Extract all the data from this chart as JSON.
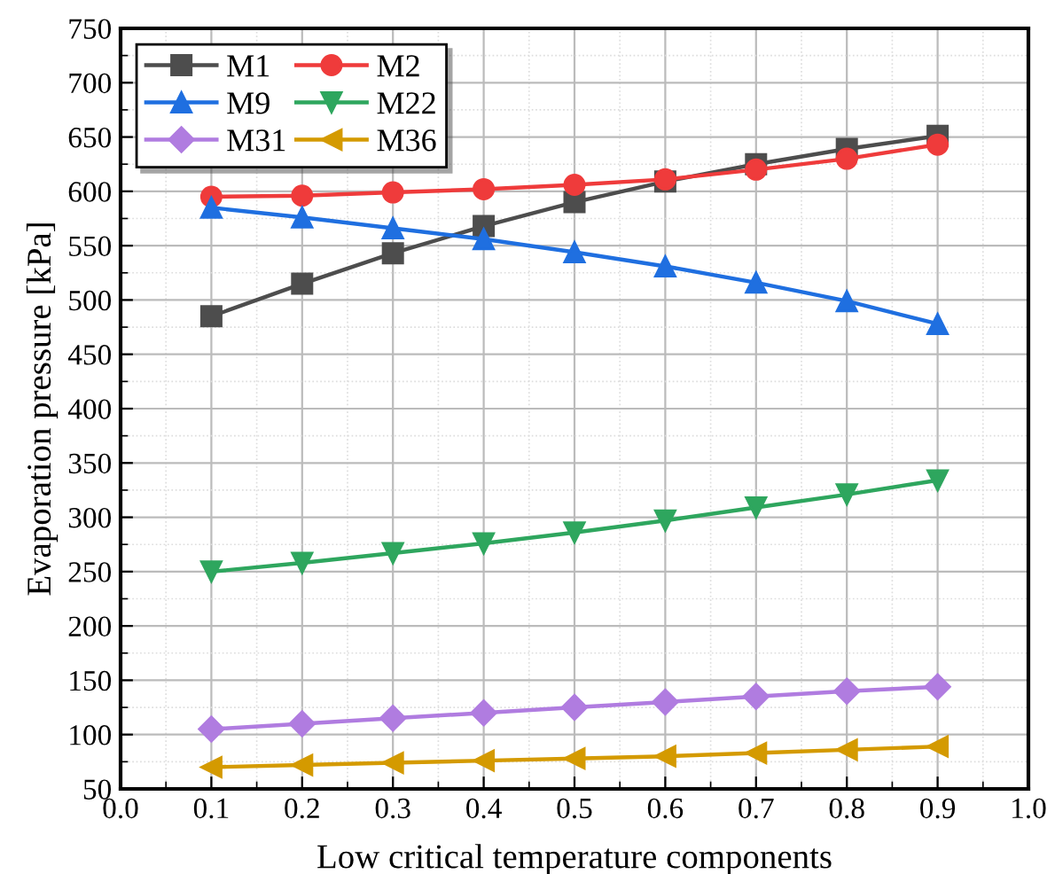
{
  "chart_data": {
    "type": "line",
    "xlabel": "Low critical temperature components",
    "ylabel": "Evaporation pressure [kPa]",
    "x": [
      0.1,
      0.2,
      0.3,
      0.4,
      0.5,
      0.6,
      0.7,
      0.8,
      0.9
    ],
    "series": [
      {
        "name": "M1",
        "color": "#4d4d4d",
        "marker": "square",
        "values": [
          485,
          515,
          543,
          568,
          590,
          609,
          625,
          639,
          651
        ]
      },
      {
        "name": "M2",
        "color": "#ef3b3b",
        "marker": "circle",
        "values": [
          595,
          596,
          599,
          602,
          606,
          611,
          620,
          630,
          643
        ]
      },
      {
        "name": "M9",
        "color": "#1f6fe0",
        "marker": "triangle",
        "values": [
          585,
          576,
          566,
          556,
          544,
          531,
          516,
          499,
          478
        ]
      },
      {
        "name": "M22",
        "color": "#2ea65e",
        "marker": "triangle_down",
        "values": [
          250,
          258,
          267,
          276,
          286,
          297,
          309,
          321,
          334
        ]
      },
      {
        "name": "M31",
        "color": "#b07ce0",
        "marker": "diamond",
        "values": [
          105,
          110,
          115,
          120,
          125,
          130,
          135,
          140,
          144
        ]
      },
      {
        "name": "M36",
        "color": "#d49a00",
        "marker": "triangle_left",
        "values": [
          70,
          72,
          74,
          76,
          78,
          80,
          83,
          86,
          89
        ]
      }
    ],
    "xlim": [
      0.0,
      1.0
    ],
    "xticks": [
      {
        "value": 0.0,
        "label": "0.0"
      },
      0.1,
      0.2,
      0.3,
      0.4,
      0.5,
      0.6,
      0.7,
      0.8,
      0.9,
      {
        "value": 1.0,
        "label": "1.0"
      }
    ],
    "ylim": [
      50,
      750
    ],
    "yticks": [
      50,
      100,
      150,
      200,
      250,
      300,
      350,
      400,
      450,
      500,
      550,
      600,
      650,
      700,
      750
    ],
    "grid": true,
    "legend": "top left",
    "line_style": "solid"
  }
}
